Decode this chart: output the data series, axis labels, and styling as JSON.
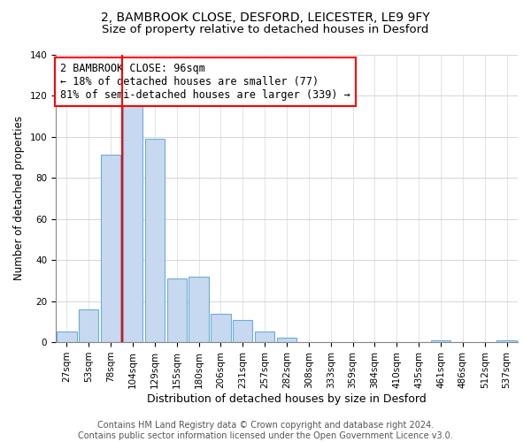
{
  "title1": "2, BAMBROOK CLOSE, DESFORD, LEICESTER, LE9 9FY",
  "title2": "Size of property relative to detached houses in Desford",
  "xlabel": "Distribution of detached houses by size in Desford",
  "ylabel": "Number of detached properties",
  "bar_labels": [
    "27sqm",
    "53sqm",
    "78sqm",
    "104sqm",
    "129sqm",
    "155sqm",
    "180sqm",
    "206sqm",
    "231sqm",
    "257sqm",
    "282sqm",
    "308sqm",
    "333sqm",
    "359sqm",
    "384sqm",
    "410sqm",
    "435sqm",
    "461sqm",
    "486sqm",
    "512sqm",
    "537sqm"
  ],
  "bar_values": [
    5,
    16,
    91,
    115,
    99,
    31,
    32,
    14,
    11,
    5,
    2,
    0,
    0,
    0,
    0,
    0,
    0,
    1,
    0,
    0,
    1
  ],
  "bar_color": "#c6d9f0",
  "bar_edge_color": "#6baed6",
  "vline_color": "red",
  "annotation_title": "2 BAMBROOK CLOSE: 96sqm",
  "annotation_line1": "← 18% of detached houses are smaller (77)",
  "annotation_line2": "81% of semi-detached houses are larger (339) →",
  "annotation_box_color": "white",
  "annotation_box_edge_color": "red",
  "ylim": [
    0,
    140
  ],
  "yticks": [
    0,
    20,
    40,
    60,
    80,
    100,
    120,
    140
  ],
  "footer1": "Contains HM Land Registry data © Crown copyright and database right 2024.",
  "footer2": "Contains public sector information licensed under the Open Government Licence v3.0.",
  "title1_fontsize": 10,
  "title2_fontsize": 9.5,
  "xlabel_fontsize": 9,
  "ylabel_fontsize": 8.5,
  "tick_fontsize": 7.5,
  "footer_fontsize": 7,
  "annot_fontsize": 8.5
}
